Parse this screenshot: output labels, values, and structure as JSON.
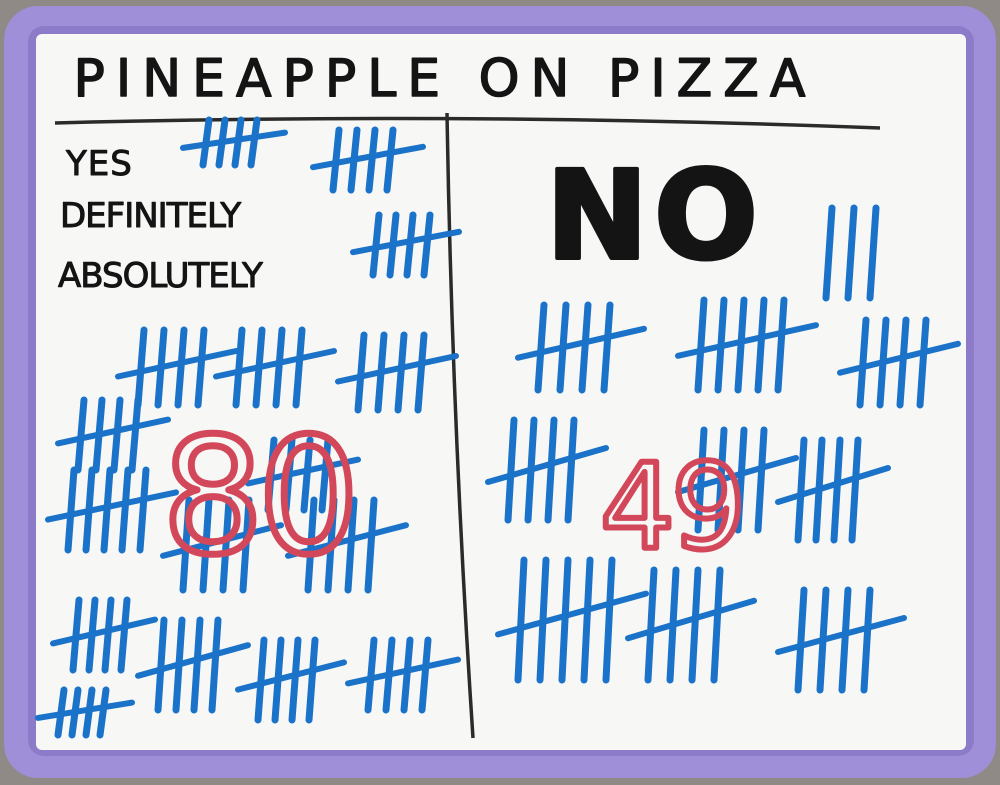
{
  "board": {
    "title": "PINEAPPLE ON PIZZA",
    "frame_color": "#9f8fd8",
    "surface_color": "#f7f7f5",
    "ink_black": "#141414",
    "ink_blue": "#1a73c9",
    "ink_red": "#d2485a"
  },
  "yes_column": {
    "labels": [
      "YES",
      "DEFINITELY",
      "ABSOLUTELY"
    ],
    "total": "80"
  },
  "no_column": {
    "heading": "NO",
    "total": "49"
  }
}
